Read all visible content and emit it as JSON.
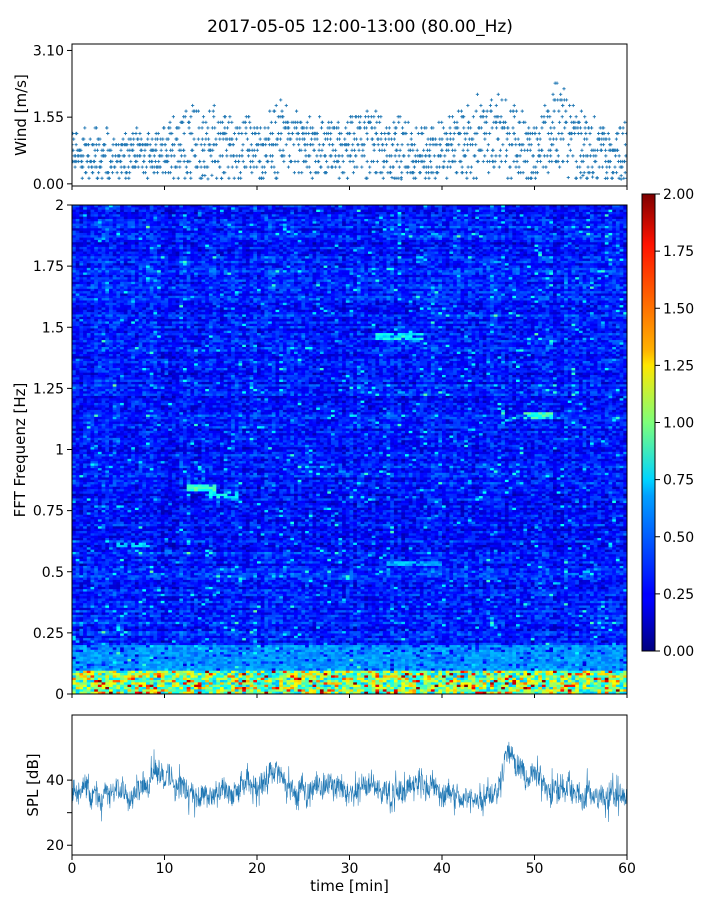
{
  "title": "2017-05-05 12:00-13:00 (80.00_Hz)",
  "chart_data": [
    {
      "panel": "wind",
      "type": "scatter",
      "ylabel": "Wind [m/s]",
      "yticks": [
        0.0,
        1.55,
        3.1
      ],
      "ytick_labels": [
        "0.00",
        "1.55",
        "3.10"
      ],
      "xlim": [
        0,
        60
      ],
      "ylim": [
        -0.05,
        3.25
      ],
      "marker": "+",
      "color": "#1f77b4",
      "sample_step_min": 0.1,
      "envelope": {
        "x": [
          0,
          5,
          8,
          10,
          12,
          14,
          17,
          20,
          23,
          26,
          30,
          33,
          36,
          40,
          42,
          45,
          47,
          50,
          52,
          55,
          58,
          60
        ],
        "baseline": [
          0.7,
          0.65,
          0.7,
          0.75,
          0.9,
          0.9,
          0.8,
          0.85,
          1.0,
          0.8,
          0.8,
          0.95,
          0.75,
          0.7,
          0.9,
          1.15,
          1.05,
          0.7,
          1.4,
          0.9,
          0.6,
          0.9
        ],
        "spread": [
          0.6,
          0.55,
          0.55,
          0.55,
          0.85,
          0.9,
          0.75,
          0.7,
          0.9,
          0.65,
          0.7,
          0.85,
          0.75,
          0.6,
          0.8,
          1.0,
          1.0,
          0.6,
          1.1,
          0.9,
          0.6,
          0.9
        ]
      }
    },
    {
      "panel": "spectrogram",
      "type": "heatmap",
      "ylabel": "FFT Frequenz [Hz]",
      "yticks": [
        0,
        0.25,
        0.5,
        0.75,
        1,
        1.25,
        1.5,
        1.75,
        2
      ],
      "ytick_labels": [
        "0",
        "0.25",
        "0.5",
        "0.75",
        "1",
        "1.25",
        "1.5",
        "1.75",
        "2"
      ],
      "xlim": [
        0,
        60
      ],
      "ylim": [
        0,
        2
      ],
      "colormap": "jet",
      "colorbar": {
        "min": 0.0,
        "max": 2.0,
        "ticks": [
          0.0,
          0.25,
          0.5,
          0.75,
          1.0,
          1.25,
          1.5,
          1.75,
          2.0
        ],
        "tick_labels": [
          "0.00",
          "0.25",
          "0.50",
          "0.75",
          "1.00",
          "1.25",
          "1.50",
          "1.75",
          "2.00"
        ]
      },
      "typical_value": 0.3,
      "low_frequency_band": {
        "freq_max": 0.1,
        "value_range": [
          0.6,
          2.0
        ]
      },
      "notable_patches": [
        {
          "t": [
            12.5,
            15.5
          ],
          "f": [
            0.83,
            0.86
          ],
          "value": 0.85
        },
        {
          "t": [
            15,
            18
          ],
          "f": [
            0.8,
            0.83
          ],
          "value": 0.75
        },
        {
          "t": [
            5,
            8
          ],
          "f": [
            0.6,
            0.62
          ],
          "value": 0.7
        },
        {
          "t": [
            33,
            38
          ],
          "f": [
            1.45,
            1.48
          ],
          "value": 0.75
        },
        {
          "t": [
            49,
            52
          ],
          "f": [
            1.12,
            1.15
          ],
          "value": 0.85
        },
        {
          "t": [
            34,
            40
          ],
          "f": [
            0.52,
            0.54
          ],
          "value": 0.6
        },
        {
          "t": [
            0,
            60
          ],
          "f": [
            0.1,
            0.2
          ],
          "value": 0.55
        }
      ]
    },
    {
      "panel": "spl",
      "type": "line",
      "ylabel": "SPL [dB]",
      "xlabel": "time [min]",
      "xticks": [
        0,
        10,
        20,
        30,
        40,
        50,
        60
      ],
      "xtick_labels": [
        "0",
        "10",
        "20",
        "30",
        "40",
        "50",
        "60"
      ],
      "yticks": [
        20,
        30,
        40
      ],
      "ytick_labels": [
        "20",
        "",
        "40"
      ],
      "xlim": [
        0,
        60
      ],
      "ylim": [
        17,
        60
      ],
      "color": "#1f77b4",
      "mean_curve": {
        "x": [
          0,
          2,
          4,
          6,
          8,
          9,
          10,
          12,
          14,
          16,
          18,
          20,
          22,
          24,
          26,
          28,
          30,
          32,
          34,
          36,
          38,
          40,
          42,
          44,
          46,
          47,
          48,
          50,
          52,
          54,
          56,
          58,
          60
        ],
        "y": [
          37,
          35,
          36,
          37,
          39,
          45,
          41,
          38,
          35,
          36,
          37,
          39,
          42,
          36,
          38,
          39,
          37,
          39,
          36,
          37,
          40,
          36,
          35,
          34,
          38,
          50,
          44,
          41,
          38,
          37,
          35,
          34,
          36
        ]
      },
      "noise_amplitude": 6
    }
  ]
}
